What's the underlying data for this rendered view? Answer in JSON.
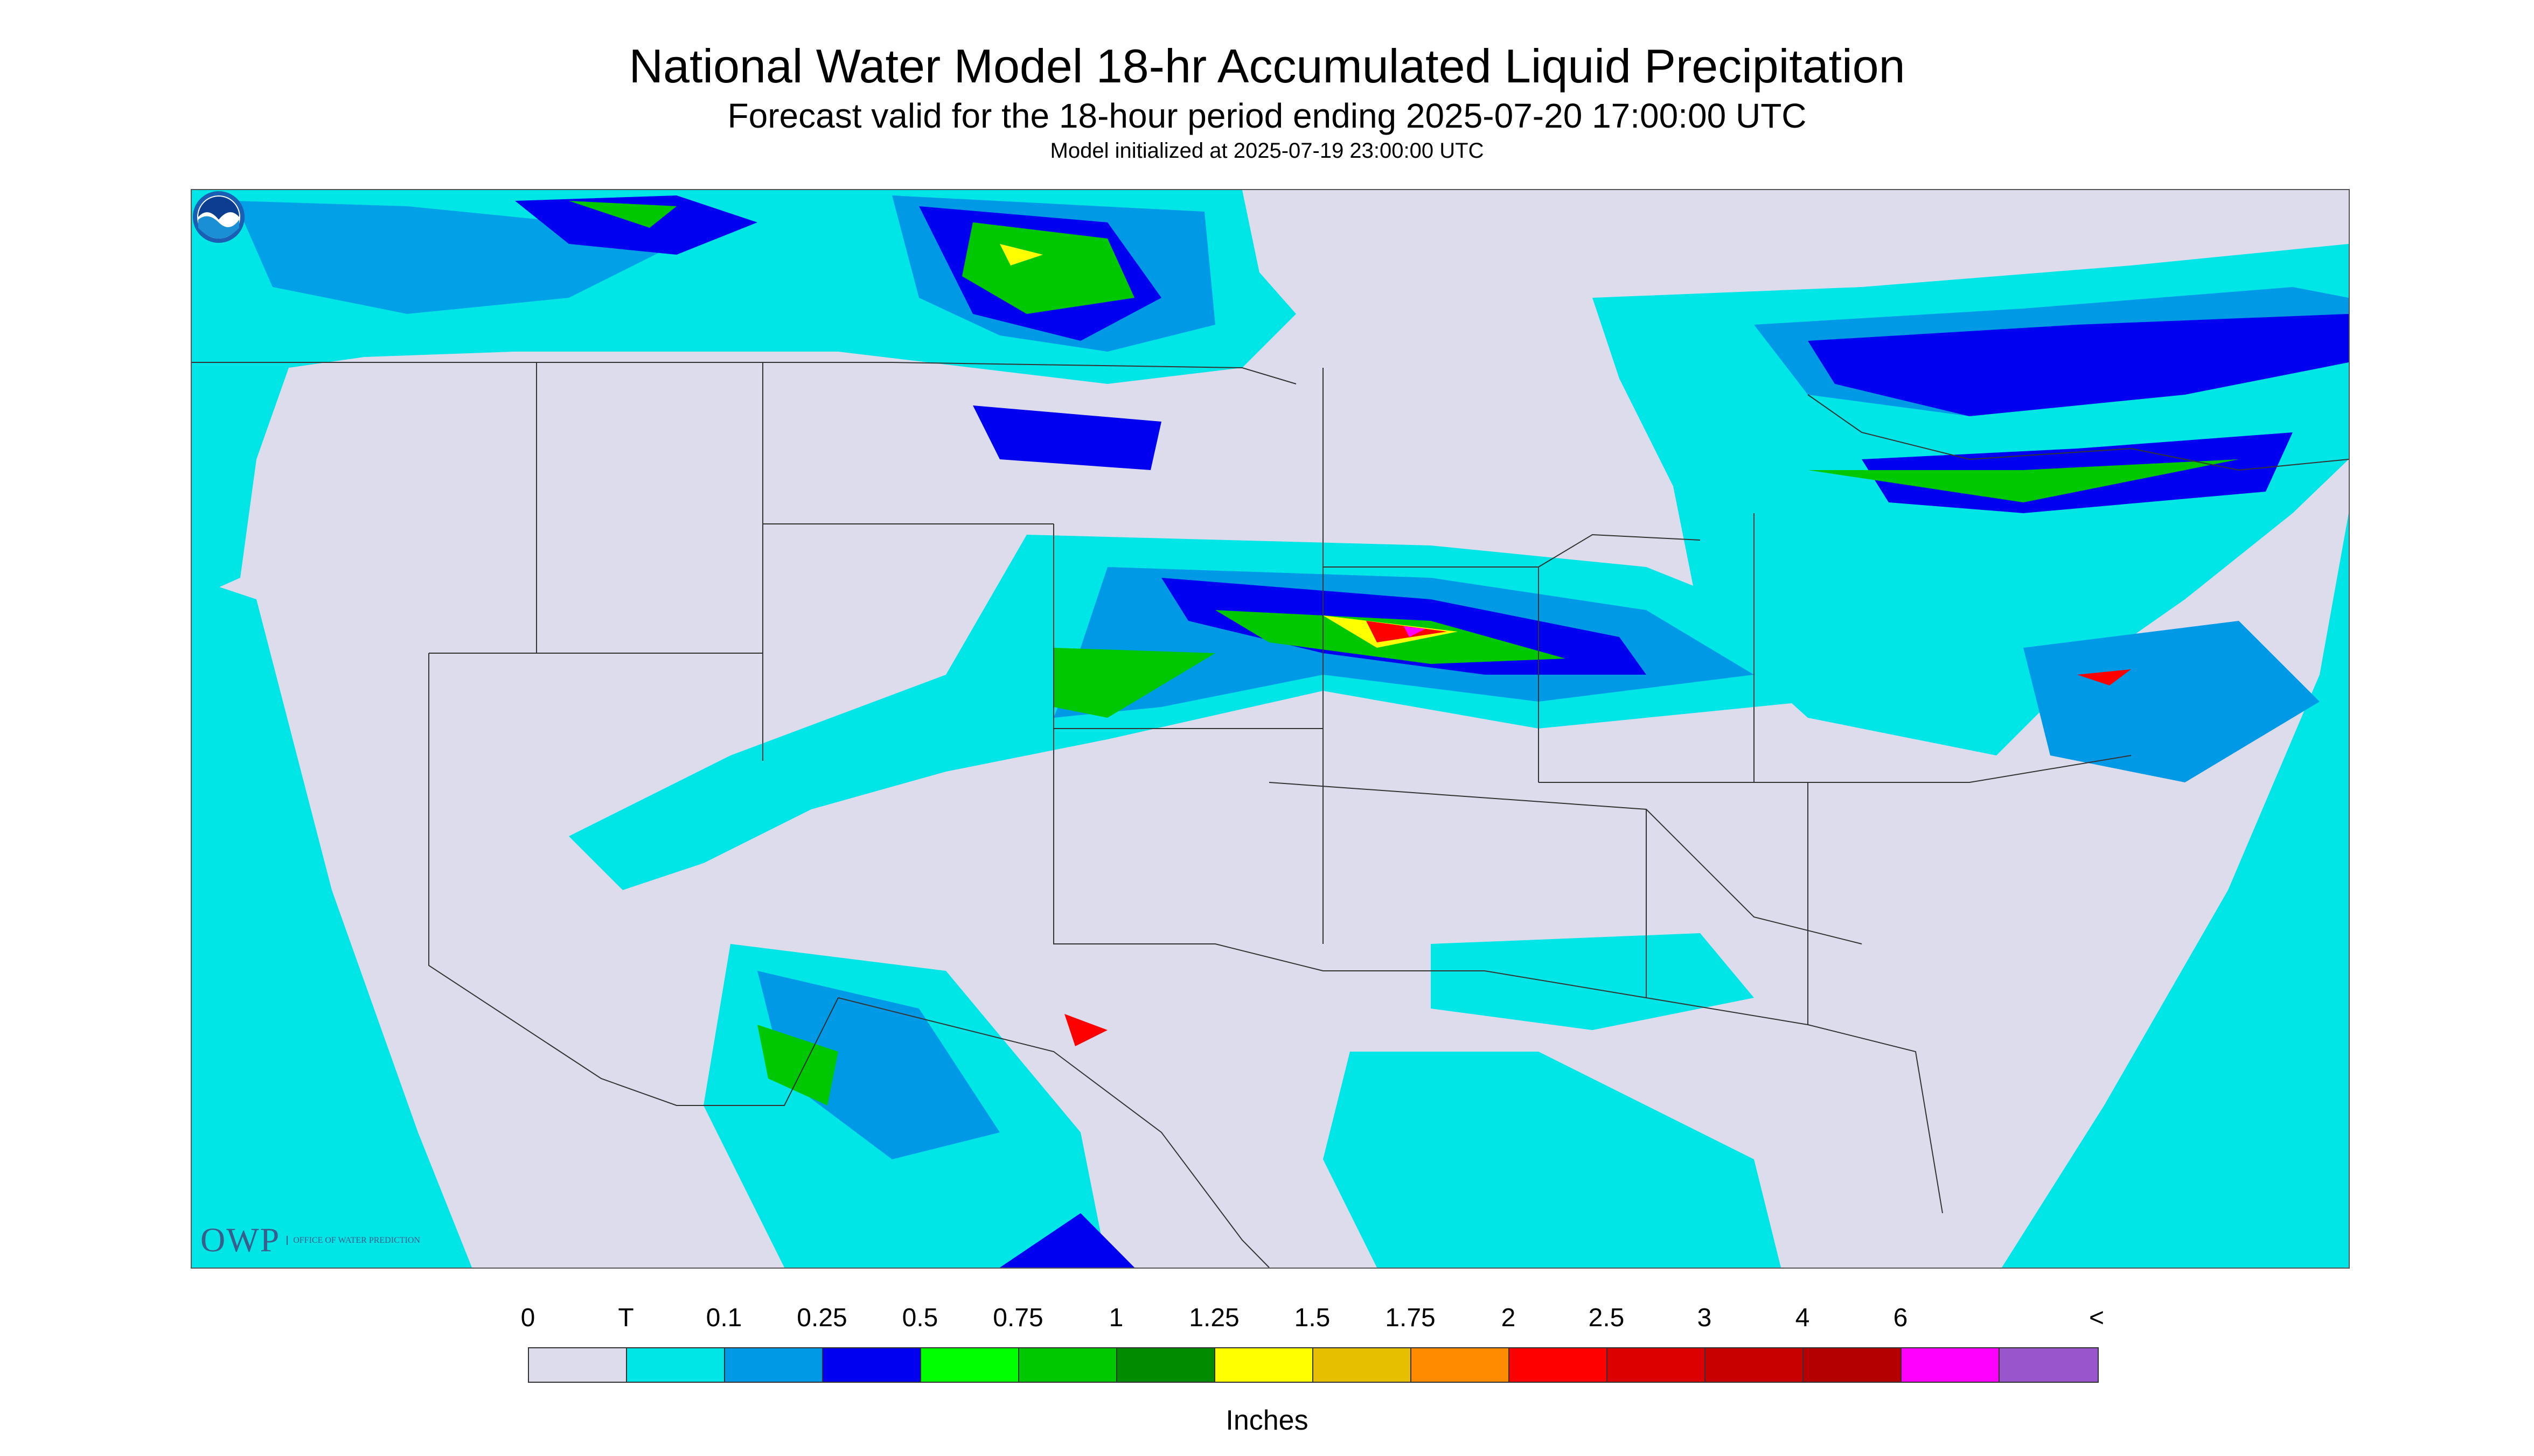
{
  "title": "National Water Model 18-hr Accumulated Liquid Precipitation",
  "subtitle": "Forecast valid for the 18-hour period ending 2025-07-20 17:00:00 UTC",
  "init_line": "Model initialized at 2025-07-19 23:00:00 UTC",
  "logo": {
    "owp_text": "OWP",
    "owp_small": "OFFICE OF WATER PREDICTION",
    "noaa_text": "NOAA"
  },
  "legend": {
    "labels": [
      "0",
      "T",
      "0.1",
      "0.25",
      "0.5",
      "0.75",
      "1",
      "1.25",
      "1.5",
      "1.75",
      "2",
      "2.5",
      "3",
      "4",
      "6",
      "<"
    ],
    "colors": [
      "#dcdcec",
      "#00e5e5",
      "#0099e6",
      "#0000f0",
      "#00ff00",
      "#00c800",
      "#008c00",
      "#ffff00",
      "#e6c000",
      "#ff8c00",
      "#ff0000",
      "#dc0000",
      "#c80000",
      "#b40000",
      "#ff00ff",
      "#9955cc"
    ],
    "units": "Inches"
  },
  "map": {
    "background_color": "#dcdcec",
    "trace_color": "#00e5e5",
    "heavy_colors": [
      "#0099e6",
      "#0000f0",
      "#00c800",
      "#ffff00",
      "#ff8c00",
      "#ff0000",
      "#ff00ff"
    ]
  }
}
